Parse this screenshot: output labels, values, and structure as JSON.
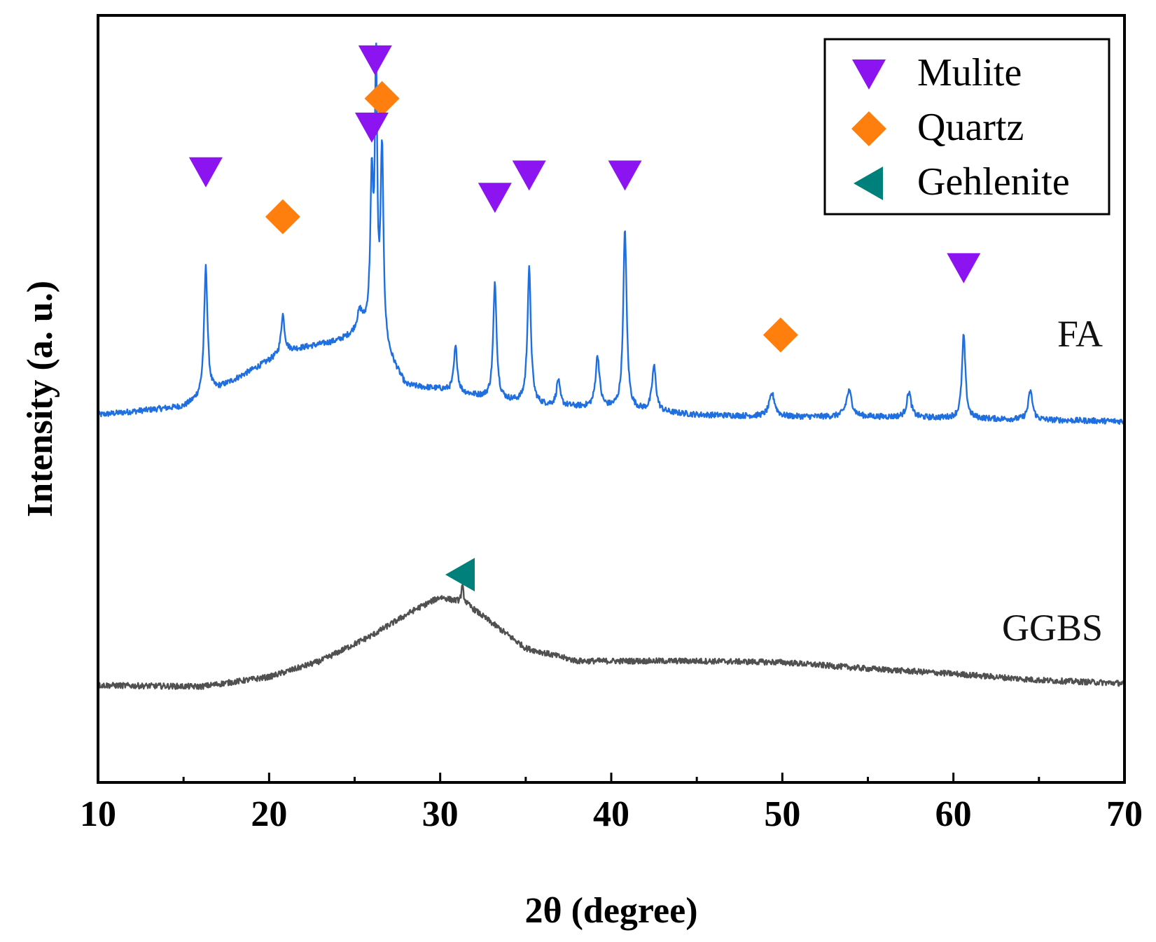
{
  "chart_data": {
    "type": "line",
    "title": "",
    "xlabel": "2θ (degree)",
    "ylabel": "Intensity (a. u.)",
    "xlim": [
      10,
      70
    ],
    "ylim": [
      0,
      1.2
    ],
    "x_ticks": [
      10,
      20,
      30,
      40,
      50,
      60,
      70
    ],
    "y_ticks": [],
    "grid": false,
    "legend_position": "top-right",
    "colors": {
      "FA": "#1f6fe0",
      "GGBS": "#505050",
      "Mulite": "#8b14f0",
      "Quartz": "#ff7f0e",
      "Gehlenite": "#00807a"
    },
    "legend": [
      {
        "name": "Mulite",
        "marker": "triangle-down"
      },
      {
        "name": "Quartz",
        "marker": "diamond"
      },
      {
        "name": "Gehlenite",
        "marker": "triangle-left"
      }
    ],
    "series": [
      {
        "name": "FA",
        "label": "FA",
        "baseline": [
          [
            10,
            0.575
          ],
          [
            15,
            0.588
          ],
          [
            18,
            0.63
          ],
          [
            21,
            0.675
          ],
          [
            24,
            0.69
          ],
          [
            26,
            0.71
          ],
          [
            28,
            0.62
          ],
          [
            30,
            0.615
          ],
          [
            33,
            0.6
          ],
          [
            36,
            0.59
          ],
          [
            40,
            0.585
          ],
          [
            45,
            0.575
          ],
          [
            50,
            0.572
          ],
          [
            55,
            0.572
          ],
          [
            60,
            0.57
          ],
          [
            65,
            0.567
          ],
          [
            70,
            0.565
          ]
        ],
        "peaks": [
          {
            "x": 16.3,
            "height": 0.2,
            "width": 0.12
          },
          {
            "x": 20.8,
            "height": 0.06,
            "width": 0.12
          },
          {
            "x": 25.3,
            "height": 0.03,
            "width": 0.2
          },
          {
            "x": 26.0,
            "height": 0.22,
            "width": 0.1
          },
          {
            "x": 26.25,
            "height": 0.41,
            "width": 0.08
          },
          {
            "x": 26.6,
            "height": 0.3,
            "width": 0.1
          },
          {
            "x": 30.9,
            "height": 0.07,
            "width": 0.12
          },
          {
            "x": 33.2,
            "height": 0.18,
            "width": 0.12
          },
          {
            "x": 35.2,
            "height": 0.21,
            "width": 0.12
          },
          {
            "x": 36.9,
            "height": 0.04,
            "width": 0.12
          },
          {
            "x": 39.2,
            "height": 0.08,
            "width": 0.14
          },
          {
            "x": 40.8,
            "height": 0.28,
            "width": 0.12
          },
          {
            "x": 42.5,
            "height": 0.07,
            "width": 0.14
          },
          {
            "x": 49.4,
            "height": 0.035,
            "width": 0.2
          },
          {
            "x": 53.9,
            "height": 0.04,
            "width": 0.2
          },
          {
            "x": 57.4,
            "height": 0.04,
            "width": 0.15
          },
          {
            "x": 60.6,
            "height": 0.13,
            "width": 0.12
          },
          {
            "x": 64.5,
            "height": 0.045,
            "width": 0.15
          }
        ]
      },
      {
        "name": "GGBS",
        "label": "GGBS",
        "baseline": [
          [
            10,
            0.152
          ],
          [
            16,
            0.15
          ],
          [
            20,
            0.165
          ],
          [
            23,
            0.19
          ],
          [
            26,
            0.23
          ],
          [
            28.5,
            0.27
          ],
          [
            30,
            0.29
          ],
          [
            31.5,
            0.28
          ],
          [
            33,
            0.25
          ],
          [
            35,
            0.21
          ],
          [
            38,
            0.19
          ],
          [
            45,
            0.19
          ],
          [
            50,
            0.188
          ],
          [
            55,
            0.178
          ],
          [
            60,
            0.17
          ],
          [
            65,
            0.16
          ],
          [
            70,
            0.155
          ]
        ],
        "peaks": [
          {
            "x": 31.3,
            "height": 0.025,
            "width": 0.08
          }
        ]
      }
    ],
    "annotations": [
      {
        "phase": "Mulite",
        "x": 16.3,
        "y": 0.955
      },
      {
        "phase": "Quartz",
        "x": 20.8,
        "y": 0.885
      },
      {
        "phase": "Mulite",
        "x": 26.2,
        "y": 1.13
      },
      {
        "phase": "Quartz",
        "x": 26.6,
        "y": 1.07
      },
      {
        "phase": "Mulite",
        "x": 26.0,
        "y": 1.025
      },
      {
        "phase": "Mulite",
        "x": 33.2,
        "y": 0.915
      },
      {
        "phase": "Mulite",
        "x": 35.2,
        "y": 0.95
      },
      {
        "phase": "Mulite",
        "x": 40.8,
        "y": 0.95
      },
      {
        "phase": "Quartz",
        "x": 49.9,
        "y": 0.7
      },
      {
        "phase": "Mulite",
        "x": 60.6,
        "y": 0.805
      },
      {
        "phase": "Gehlenite",
        "x": 31.2,
        "y": 0.325
      }
    ]
  }
}
